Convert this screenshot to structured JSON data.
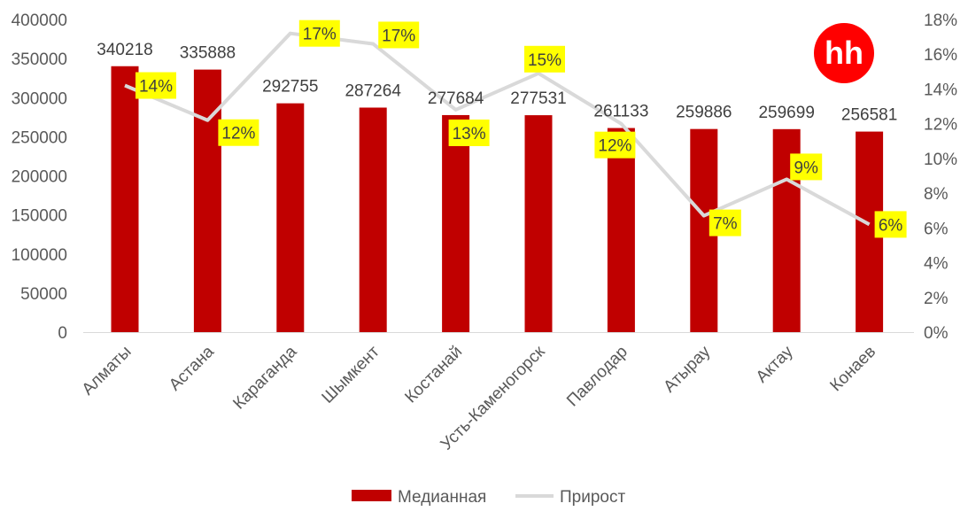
{
  "chart_data": {
    "type": "bar",
    "categories": [
      "Алматы",
      "Астана",
      "Караганда",
      "Шымкент",
      "Костанай",
      "Усть-Каменогорск",
      "Павлодар",
      "Атырау",
      "Актау",
      "Конаев"
    ],
    "series": [
      {
        "name": "Медианная",
        "type": "bar",
        "axis": "left",
        "values": [
          340218,
          335888,
          292755,
          287264,
          277684,
          277531,
          261133,
          259886,
          259699,
          256581
        ],
        "labels": [
          "340218",
          "335888",
          "292755",
          "287264",
          "277684",
          "277531",
          "261133",
          "259886",
          "259699",
          "256581"
        ],
        "color": "#C00000"
      },
      {
        "name": "Прирост",
        "type": "line",
        "axis": "right",
        "values": [
          14.2,
          12.2,
          17.2,
          16.6,
          12.8,
          14.9,
          12.0,
          6.7,
          8.8,
          6.2
        ],
        "labels": [
          "14%",
          "12%",
          "17%",
          "17%",
          "13%",
          "15%",
          "12%",
          "7%",
          "9%",
          "6%"
        ],
        "color": "#D9D9D9",
        "label_background": "#FFFF00"
      }
    ],
    "y_left": {
      "min": 0,
      "max": 400000,
      "step": 50000,
      "ticks": [
        "0",
        "50000",
        "100000",
        "150000",
        "200000",
        "250000",
        "300000",
        "350000",
        "400000"
      ]
    },
    "y_right": {
      "min": 0,
      "max": 18,
      "step": 2,
      "ticks": [
        "0%",
        "2%",
        "4%",
        "6%",
        "8%",
        "10%",
        "12%",
        "14%",
        "16%",
        "18%"
      ]
    },
    "grid": false,
    "legend_position": "bottom",
    "legend": [
      "Медианная",
      "Прирост"
    ],
    "title": "",
    "xlabel": "",
    "ylabel": ""
  },
  "logo": {
    "text": "hh",
    "color": "#FF0000"
  }
}
